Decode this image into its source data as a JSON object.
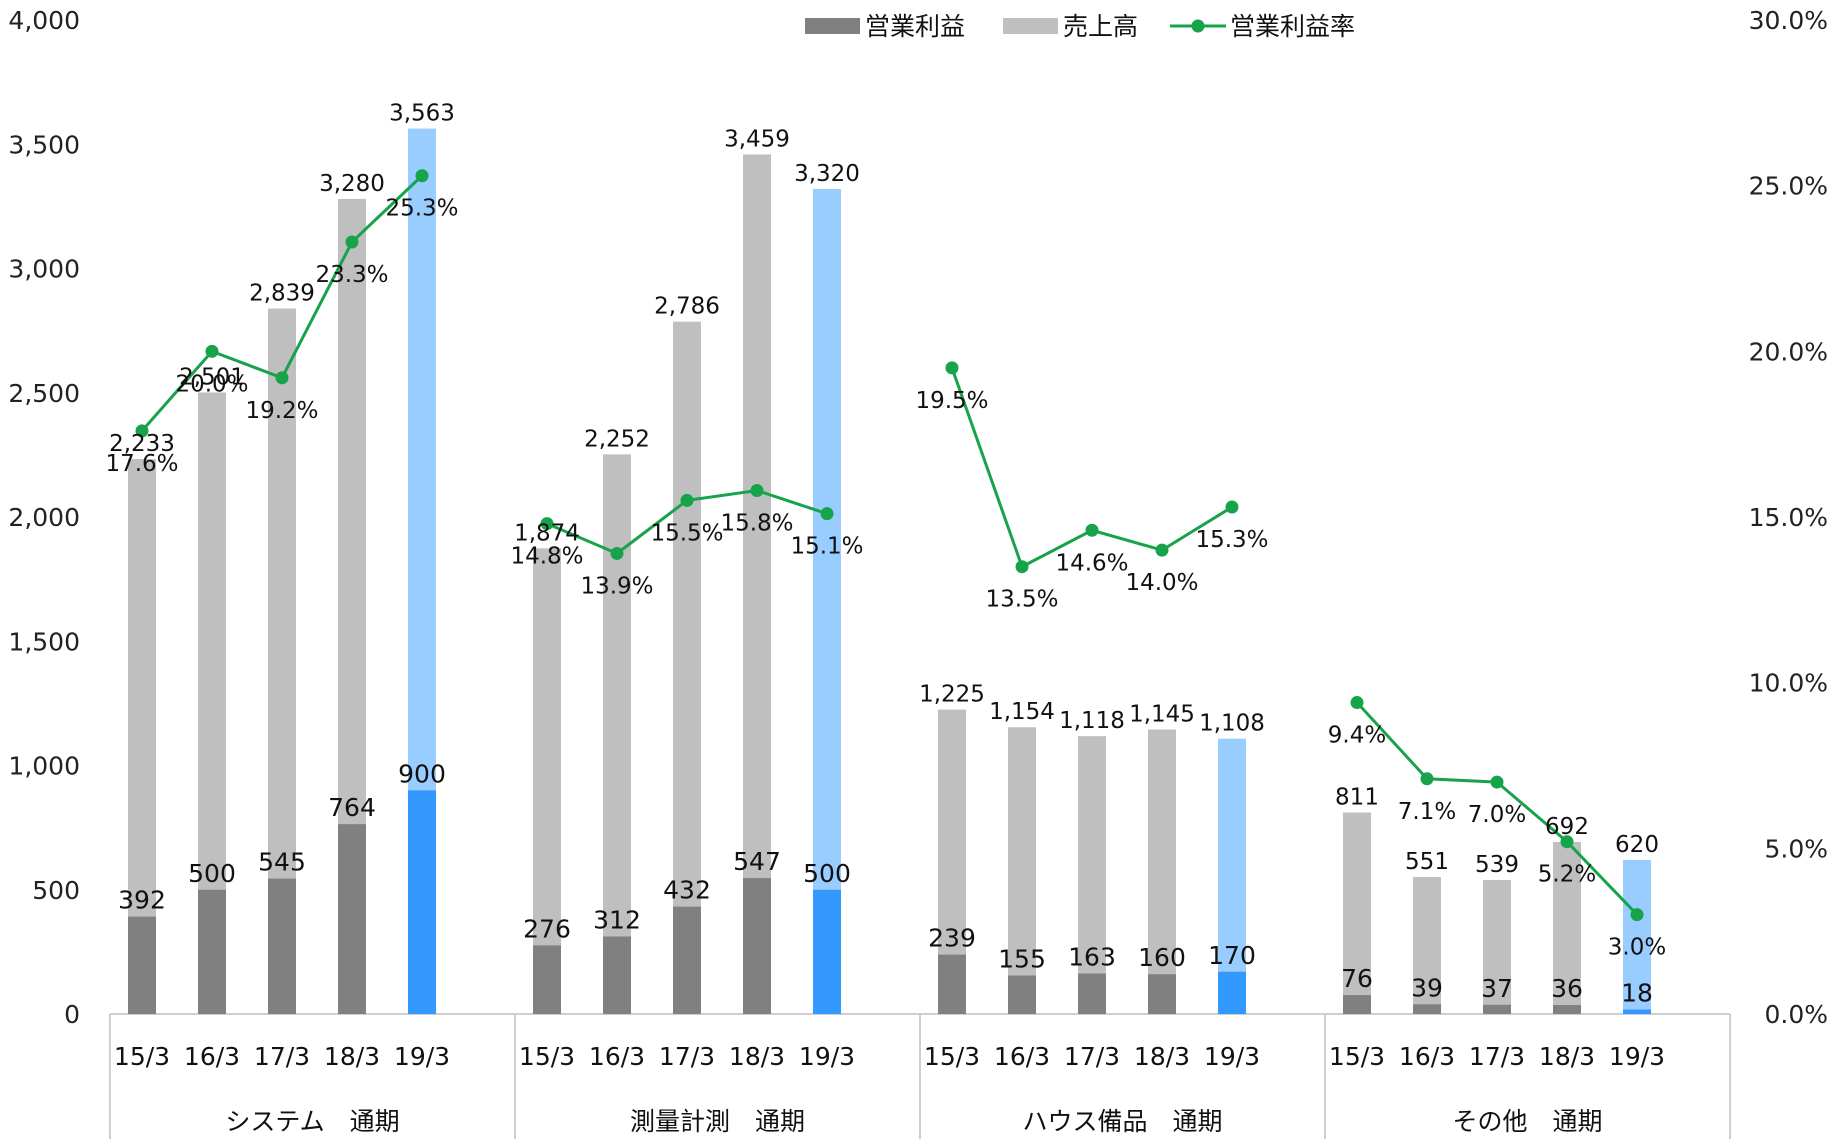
{
  "chart_data": {
    "type": "bar",
    "subtype": "overlaid bars with line on secondary axis",
    "groups": [
      {
        "name": "システム　通期",
        "periods": [
          "15/3",
          "16/3",
          "17/3",
          "18/3",
          "19/3"
        ],
        "sales": [
          2233,
          2501,
          2839,
          3280,
          3563
        ],
        "sales_labels": [
          "2,233",
          "2,501",
          "2,839",
          "3,280",
          "3,563"
        ],
        "operating_profit": [
          392,
          500,
          545,
          764,
          900
        ],
        "operating_profit_labels": [
          "392",
          "500",
          "545",
          "764",
          "900"
        ],
        "margin_pct": [
          17.6,
          20.0,
          19.2,
          23.3,
          25.3
        ],
        "margin_labels": [
          "17.6%",
          "20.0%",
          "19.2%",
          "23.3%",
          "25.3%"
        ]
      },
      {
        "name": "測量計測　通期",
        "periods": [
          "15/3",
          "16/3",
          "17/3",
          "18/3",
          "19/3"
        ],
        "sales": [
          1874,
          2252,
          2786,
          3459,
          3320
        ],
        "sales_labels": [
          "1,874",
          "2,252",
          "2,786",
          "3,459",
          "3,320"
        ],
        "operating_profit": [
          276,
          312,
          432,
          547,
          500
        ],
        "operating_profit_labels": [
          "276",
          "312",
          "432",
          "547",
          "500"
        ],
        "margin_pct": [
          14.8,
          13.9,
          15.5,
          15.8,
          15.1
        ],
        "margin_labels": [
          "14.8%",
          "13.9%",
          "15.5%",
          "15.8%",
          "15.1%"
        ]
      },
      {
        "name": "ハウス備品　通期",
        "periods": [
          "15/3",
          "16/3",
          "17/3",
          "18/3",
          "19/3"
        ],
        "sales": [
          1225,
          1154,
          1118,
          1145,
          1108
        ],
        "sales_labels": [
          "1,225",
          "1,154",
          "1,118",
          "1,145",
          "1,108"
        ],
        "operating_profit": [
          239,
          155,
          163,
          160,
          170
        ],
        "operating_profit_labels": [
          "239",
          "155",
          "163",
          "160",
          "170"
        ],
        "margin_pct": [
          19.5,
          13.5,
          14.6,
          14.0,
          15.3
        ],
        "margin_labels": [
          "19.5%",
          "13.5%",
          "14.6%",
          "14.0%",
          "15.3%"
        ]
      },
      {
        "name": "その他　通期",
        "periods": [
          "15/3",
          "16/3",
          "17/3",
          "18/3",
          "19/3"
        ],
        "sales": [
          811,
          551,
          539,
          692,
          620
        ],
        "sales_labels": [
          "811",
          "551",
          "539",
          "692",
          "620"
        ],
        "operating_profit": [
          76,
          39,
          37,
          36,
          18
        ],
        "operating_profit_labels": [
          "76",
          "39",
          "37",
          "36",
          "18"
        ],
        "margin_pct": [
          9.4,
          7.1,
          7.0,
          5.2,
          3.0
        ],
        "margin_labels": [
          "9.4%",
          "7.1%",
          "7.0%",
          "5.2%",
          "3.0%"
        ]
      }
    ],
    "legend": {
      "position": "top-center",
      "items": [
        {
          "name": "営業利益",
          "kind": "bar",
          "color": "#808080"
        },
        {
          "name": "売上高",
          "kind": "bar",
          "color": "#bfbfbf"
        },
        {
          "name": "営業利益率",
          "kind": "line",
          "color": "#16a34a"
        }
      ]
    },
    "y_left": {
      "ylim": [
        0,
        4000
      ],
      "ticks": [
        0,
        500,
        1000,
        1500,
        2000,
        2500,
        3000,
        3500,
        4000
      ],
      "tick_labels": [
        "0",
        "500",
        "1,000",
        "1,500",
        "2,000",
        "2,500",
        "3,000",
        "3,500",
        "4,000"
      ]
    },
    "y_right": {
      "ylim": [
        0,
        30
      ],
      "ticks": [
        0,
        5,
        10,
        15,
        20,
        25,
        30
      ],
      "tick_labels": [
        "0.0%",
        "5.0%",
        "10.0%",
        "15.0%",
        "20.0%",
        "25.0%",
        "30.0%"
      ]
    },
    "highlight_period": "19/3",
    "colors": {
      "sales": "#bfbfbf",
      "operating_profit": "#808080",
      "sales_highlight": "#99ccff",
      "operating_profit_highlight": "#3399ff",
      "margin_line": "#16a34a",
      "axis": "#bfbfbf"
    },
    "grid": false
  }
}
